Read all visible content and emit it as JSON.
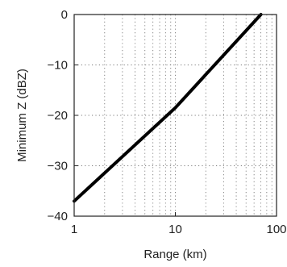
{
  "chart_data": {
    "type": "line",
    "title": "",
    "xlabel": "Range (km)",
    "ylabel": "Minimum Z (dBZ)",
    "xscale": "log",
    "xlim": [
      1,
      100
    ],
    "ylim": [
      -40,
      0
    ],
    "xticks": [
      1,
      10,
      100
    ],
    "xtick_labels": [
      "1",
      "10",
      "100"
    ],
    "yticks": [
      0,
      -10,
      -20,
      -30,
      -40
    ],
    "ytick_labels": [
      "0",
      "−10",
      "−20",
      "−30",
      "−40"
    ],
    "grid": true,
    "grid_style": "dotted",
    "series": [
      {
        "color": "#000000",
        "points": [
          [
            1,
            -37
          ],
          [
            10,
            -18.5
          ],
          [
            70,
            0
          ]
        ]
      }
    ]
  }
}
